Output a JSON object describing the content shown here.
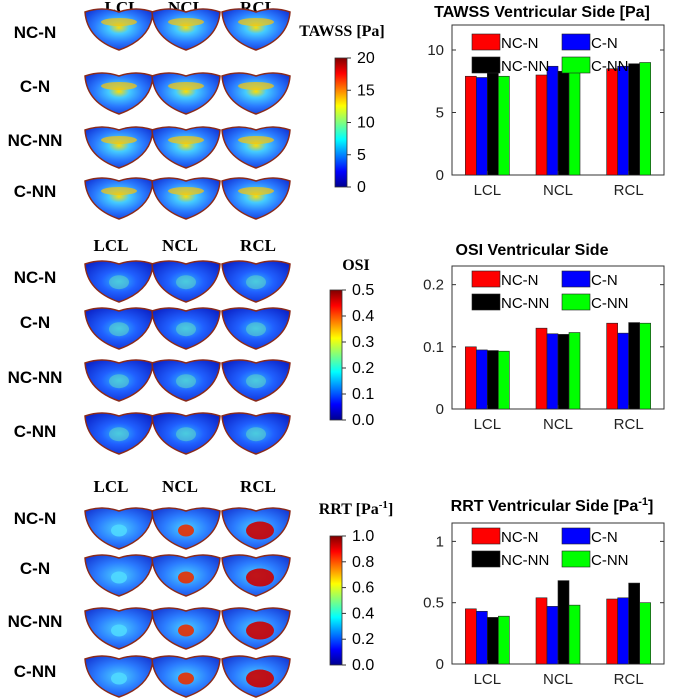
{
  "panels": [
    {
      "key": "tawss",
      "column_labels": [
        "LCL",
        "NCL",
        "RCL"
      ],
      "row_labels": [
        "NC-N",
        "C-N",
        "NC-NN",
        "C-NN"
      ],
      "colorbar": {
        "title": "TAWSS [Pa]",
        "ticks": [
          "20",
          "15",
          "10",
          "5",
          "0"
        ],
        "min": 0,
        "max": 20
      }
    },
    {
      "key": "osi",
      "column_labels": [
        "LCL",
        "NCL",
        "RCL"
      ],
      "row_labels": [
        "NC-N",
        "C-N",
        "NC-NN",
        "C-NN"
      ],
      "colorbar": {
        "title": "OSI",
        "ticks": [
          "0.5",
          "0.4",
          "0.3",
          "0.2",
          "0.1",
          "0.0"
        ],
        "min": 0,
        "max": 0.5
      }
    },
    {
      "key": "rrt",
      "column_labels": [
        "LCL",
        "NCL",
        "RCL"
      ],
      "row_labels": [
        "NC-N",
        "C-N",
        "NC-NN",
        "C-NN"
      ],
      "colorbar": {
        "title": "RRT [Pa",
        "title_sup": "-1",
        "title_close": "]",
        "ticks": [
          "1.0",
          "0.8",
          "0.6",
          "0.4",
          "0.2",
          "0.0"
        ],
        "min": 0,
        "max": 1.0
      }
    }
  ],
  "chart_data": [
    {
      "type": "bar",
      "title": "TAWSS Ventricular Side [Pa]",
      "categories": [
        "LCL",
        "NCL",
        "RCL"
      ],
      "ylim": [
        0,
        12
      ],
      "yticks": [
        "0",
        "5",
        "10"
      ],
      "ytick_values": [
        0,
        5,
        10
      ],
      "series": [
        {
          "name": "NC-N",
          "color": "#ff0000",
          "values": [
            7.9,
            8.0,
            8.5
          ]
        },
        {
          "name": "C-N",
          "color": "#0000ff",
          "values": [
            7.8,
            8.7,
            8.7
          ]
        },
        {
          "name": "NC-NN",
          "color": "#000000",
          "values": [
            8.2,
            8.3,
            8.9
          ]
        },
        {
          "name": "C-NN",
          "color": "#00ff00",
          "values": [
            7.9,
            8.4,
            9.0
          ]
        }
      ]
    },
    {
      "type": "bar",
      "title": "OSI Ventricular Side",
      "categories": [
        "LCL",
        "NCL",
        "RCL"
      ],
      "ylim": [
        0,
        0.23
      ],
      "yticks": [
        "0",
        "0.1",
        "0.2"
      ],
      "ytick_values": [
        0,
        0.1,
        0.2
      ],
      "series": [
        {
          "name": "NC-N",
          "color": "#ff0000",
          "values": [
            0.1,
            0.13,
            0.138
          ]
        },
        {
          "name": "C-N",
          "color": "#0000ff",
          "values": [
            0.095,
            0.121,
            0.122
          ]
        },
        {
          "name": "NC-NN",
          "color": "#000000",
          "values": [
            0.094,
            0.12,
            0.139
          ]
        },
        {
          "name": "C-NN",
          "color": "#00ff00",
          "values": [
            0.093,
            0.123,
            0.138
          ]
        }
      ]
    },
    {
      "type": "bar",
      "title": "RRT Ventricular Side [Pa",
      "title_sup": "-1",
      "title_close": "]",
      "categories": [
        "LCL",
        "NCL",
        "RCL"
      ],
      "ylim": [
        0,
        1.15
      ],
      "yticks": [
        "0",
        "0.5",
        "1"
      ],
      "ytick_values": [
        0,
        0.5,
        1
      ],
      "series": [
        {
          "name": "NC-N",
          "color": "#ff0000",
          "values": [
            0.45,
            0.54,
            0.53
          ]
        },
        {
          "name": "C-N",
          "color": "#0000ff",
          "values": [
            0.43,
            0.47,
            0.54
          ]
        },
        {
          "name": "NC-NN",
          "color": "#000000",
          "values": [
            0.38,
            0.68,
            0.66
          ]
        },
        {
          "name": "C-NN",
          "color": "#00ff00",
          "values": [
            0.39,
            0.48,
            0.5
          ]
        }
      ]
    }
  ]
}
